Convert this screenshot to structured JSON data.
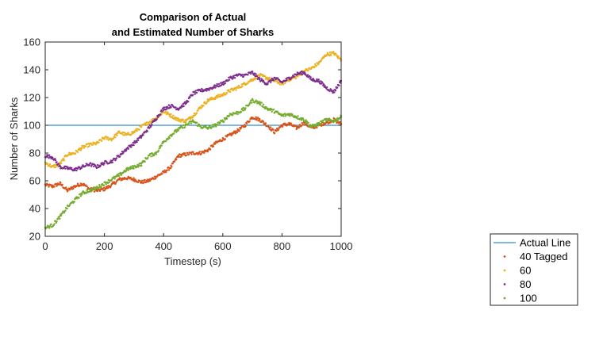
{
  "chart_data": {
    "type": "scatter",
    "title": [
      "Comparison of Actual",
      "and Estimated Number of Sharks"
    ],
    "xlabel": "Timestep (s)",
    "ylabel": "Number of Sharks",
    "xlim": [
      0,
      1000
    ],
    "ylim": [
      20,
      160
    ],
    "xticks": [
      0,
      200,
      400,
      600,
      800,
      1000
    ],
    "yticks": [
      20,
      40,
      60,
      80,
      100,
      120,
      140,
      160
    ],
    "grid": false,
    "legend_position": "bottom-right, outside plot",
    "reference_line": {
      "name": "Actual Line",
      "y": 100,
      "color": "#0072BD"
    },
    "series": [
      {
        "name": "40 Tagged",
        "color": "#D95319",
        "x": [
          0,
          25,
          50,
          75,
          100,
          125,
          150,
          175,
          200,
          225,
          250,
          275,
          300,
          325,
          350,
          375,
          400,
          425,
          450,
          475,
          500,
          525,
          550,
          575,
          600,
          625,
          650,
          675,
          700,
          725,
          750,
          775,
          800,
          825,
          850,
          875,
          900,
          925,
          950,
          975,
          1000
        ],
        "values": [
          57,
          56,
          58,
          53,
          56,
          58,
          54,
          53,
          54,
          57,
          61,
          62,
          61,
          59,
          60,
          63,
          66,
          70,
          78,
          79,
          80,
          80,
          82,
          87,
          90,
          93,
          96,
          100,
          106,
          104,
          100,
          95,
          100,
          101,
          98,
          102,
          98,
          100,
          102,
          104,
          101
        ]
      },
      {
        "name": "60",
        "color": "#EDB120",
        "x": [
          0,
          25,
          50,
          75,
          100,
          125,
          150,
          175,
          200,
          225,
          250,
          275,
          300,
          325,
          350,
          375,
          400,
          425,
          450,
          475,
          500,
          525,
          550,
          575,
          600,
          625,
          650,
          675,
          700,
          725,
          750,
          775,
          800,
          825,
          850,
          875,
          900,
          925,
          950,
          975,
          1000
        ],
        "values": [
          73,
          70,
          72,
          79,
          80,
          84,
          86,
          87,
          91,
          90,
          95,
          93,
          95,
          99,
          102,
          105,
          110,
          107,
          104,
          103,
          107,
          113,
          118,
          120,
          122,
          125,
          127,
          130,
          133,
          136,
          134,
          132,
          130,
          133,
          135,
          139,
          141,
          145,
          151,
          152,
          147
        ]
      },
      {
        "name": "80",
        "color": "#7E2F8E",
        "x": [
          0,
          25,
          50,
          75,
          100,
          125,
          150,
          175,
          200,
          225,
          250,
          275,
          300,
          325,
          350,
          375,
          400,
          425,
          450,
          475,
          500,
          525,
          550,
          575,
          600,
          625,
          650,
          675,
          700,
          725,
          750,
          775,
          800,
          825,
          850,
          875,
          900,
          925,
          950,
          975,
          1000
        ],
        "values": [
          78,
          77,
          70,
          69,
          68,
          70,
          72,
          70,
          73,
          74,
          78,
          83,
          87,
          92,
          98,
          105,
          112,
          114,
          112,
          116,
          123,
          125,
          126,
          128,
          130,
          134,
          136,
          136,
          138,
          133,
          130,
          134,
          131,
          134,
          137,
          138,
          133,
          132,
          127,
          124,
          132
        ]
      },
      {
        "name": "100",
        "color": "#77AC30",
        "x": [
          0,
          25,
          50,
          75,
          100,
          125,
          150,
          175,
          200,
          225,
          250,
          275,
          300,
          325,
          350,
          375,
          400,
          425,
          450,
          475,
          500,
          525,
          550,
          575,
          600,
          625,
          650,
          675,
          700,
          725,
          750,
          775,
          800,
          825,
          850,
          875,
          900,
          925,
          950,
          975,
          1000
        ],
        "values": [
          26,
          28,
          34,
          41,
          46,
          51,
          53,
          55,
          58,
          61,
          64,
          68,
          70,
          72,
          78,
          80,
          88,
          93,
          97,
          100,
          103,
          99,
          98,
          100,
          103,
          108,
          109,
          112,
          118,
          116,
          112,
          110,
          107,
          108,
          106,
          104,
          99,
          101,
          104,
          103,
          106
        ]
      }
    ]
  }
}
